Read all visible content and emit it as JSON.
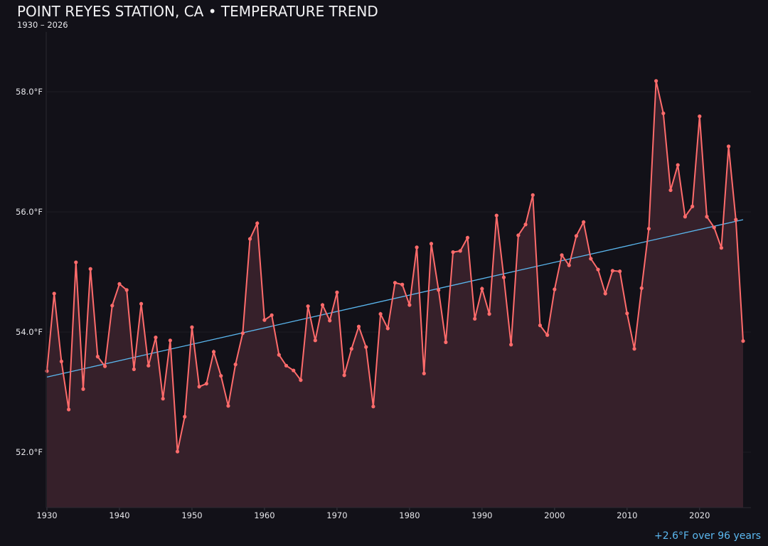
{
  "colors": {
    "background": "#121118",
    "series": "#ff6b6b",
    "fill": "#36202a",
    "trend": "#5bb8f0",
    "grid": "#1e1d25"
  },
  "chart_data": {
    "type": "line",
    "title": "POINT REYES STATION, CA • TEMPERATURE TREND",
    "subtitle": "1930 – 2026",
    "annotation": "+2.6°F over 96 years",
    "xlabel": "",
    "ylabel": "",
    "xlim": [
      1930,
      2026
    ],
    "ylim": [
      51.1,
      59.05
    ],
    "grid": true,
    "area_fill": true,
    "x_ticks": [
      "1930",
      "1940",
      "1950",
      "1960",
      "1970",
      "1980",
      "1990",
      "2000",
      "2010",
      "2020"
    ],
    "y_ticks": [
      {
        "v": 52,
        "label": "52.0°F"
      },
      {
        "v": 54,
        "label": "54.0°F"
      },
      {
        "v": 56,
        "label": "56.0°F"
      },
      {
        "v": 58,
        "label": "58.0°F"
      }
    ],
    "x_start": 1930,
    "values": [
      53.35,
      54.64,
      53.51,
      52.71,
      55.16,
      53.05,
      55.05,
      53.59,
      53.43,
      54.44,
      54.8,
      54.7,
      53.38,
      54.47,
      53.44,
      53.91,
      52.89,
      53.86,
      52.01,
      52.59,
      54.08,
      53.09,
      53.14,
      53.67,
      53.27,
      52.77,
      53.46,
      53.98,
      55.55,
      55.81,
      54.2,
      54.28,
      53.62,
      53.44,
      53.36,
      53.2,
      54.43,
      53.86,
      54.45,
      54.19,
      54.66,
      53.28,
      53.72,
      54.09,
      53.75,
      52.76,
      54.3,
      54.06,
      54.82,
      54.79,
      54.45,
      55.41,
      53.31,
      55.47,
      54.7,
      53.83,
      55.33,
      55.35,
      55.57,
      54.22,
      54.72,
      54.3,
      55.94,
      54.91,
      53.79,
      55.61,
      55.79,
      56.28,
      54.11,
      53.95,
      54.71,
      55.28,
      55.11,
      55.6,
      55.83,
      55.22,
      55.04,
      54.64,
      55.02,
      55.01,
      54.31,
      53.72,
      54.73,
      55.72,
      58.18,
      57.64,
      56.36,
      56.78,
      55.92,
      56.09,
      57.59,
      55.92,
      55.74,
      55.4,
      57.09,
      55.87,
      53.85
    ],
    "trend": {
      "start": [
        1930,
        53.25
      ],
      "end": [
        2026,
        55.87
      ]
    }
  }
}
